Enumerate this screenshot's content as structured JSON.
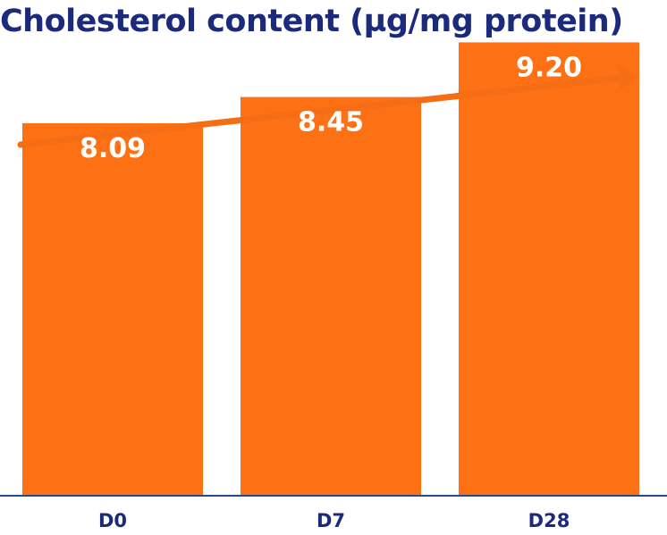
{
  "chart_data": {
    "type": "bar",
    "title": "Cholesterol content (µg/mg protein)",
    "categories": [
      "D0",
      "D7",
      "D28"
    ],
    "values": [
      8.09,
      8.45,
      9.2
    ],
    "value_labels": [
      "8.09",
      "8.45",
      "9.20"
    ],
    "xlabel": "",
    "ylabel": "",
    "grid": false,
    "trend_arrow": "increasing"
  },
  "colors": {
    "bar": "#fd7013",
    "title": "#1b2a7a",
    "tick_label": "#1b2a7a",
    "axis": "#2a4a7f",
    "value_label": "#ffffff",
    "arrow": "#f56e16"
  }
}
